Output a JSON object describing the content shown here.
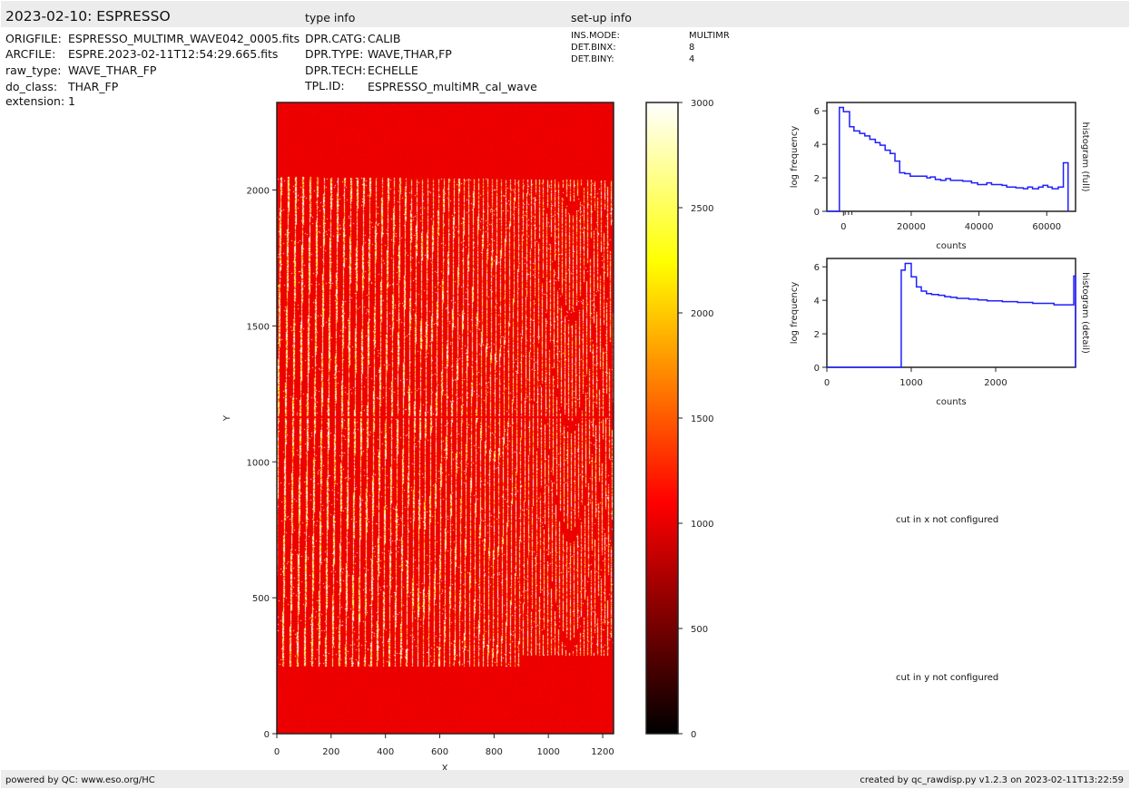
{
  "header": {
    "title": "2023-02-10: ESPRESSO",
    "type_info": "type info",
    "setup_info": "set-up info"
  },
  "file_info": [
    {
      "key": "ORIGFILE:",
      "value": "ESPRESSO_MULTIMR_WAVE042_0005.fits"
    },
    {
      "key": "ARCFILE:",
      "value": "ESPRE.2023-02-11T12:54:29.665.fits"
    },
    {
      "key": "raw_type:",
      "value": "WAVE_THAR_FP"
    },
    {
      "key": "do_class:",
      "value": "THAR_FP"
    },
    {
      "key": "extension:",
      "value": "1"
    }
  ],
  "type_info": [
    {
      "key": "DPR.CATG:",
      "value": "CALIB"
    },
    {
      "key": "DPR.TYPE:",
      "value": "WAVE,THAR,FP"
    },
    {
      "key": "DPR.TECH:",
      "value": "ECHELLE"
    },
    {
      "key": "TPL.ID:",
      "value": "ESPRESSO_multiMR_cal_wave"
    }
  ],
  "setup_info": [
    {
      "key": "INS.MODE:",
      "value": "MULTIMR"
    },
    {
      "key": "DET.BINX:",
      "value": "8"
    },
    {
      "key": "DET.BINY:",
      "value": "4"
    }
  ],
  "chart_data": [
    {
      "type": "heatmap",
      "xlabel": "X",
      "ylabel": "Y",
      "xlim": [
        0,
        1240
      ],
      "ylim": [
        0,
        2322
      ],
      "xticks": [
        "0",
        "200",
        "400",
        "600",
        "800",
        "1000",
        "1200"
      ],
      "yticks": [
        "0",
        "500",
        "1000",
        "1500",
        "2000"
      ],
      "colormap": "hot",
      "colorbar": {
        "range": [
          0,
          3000
        ],
        "ticks": [
          "0",
          "500",
          "1000",
          "1500",
          "2000",
          "2500",
          "3000"
        ]
      }
    },
    {
      "type": "line",
      "title": "histogram (detail)",
      "xlabel": "counts",
      "ylabel": "log frequency",
      "xlim": [
        0,
        2946
      ],
      "ylim": [
        0,
        6.5
      ],
      "xticks": [
        "0",
        "1000",
        "2000"
      ],
      "yticks": [
        "0",
        "2",
        "4",
        "6"
      ],
      "color": "#1f1fff",
      "bin_edges": [
        0,
        881,
        928,
        1000,
        1061,
        1119,
        1180,
        1241,
        1324,
        1396,
        1468,
        1540,
        1683,
        1791,
        1899,
        2079,
        2259,
        2439,
        2691,
        2925,
        2946
      ],
      "values": [
        0,
        5.8,
        6.2,
        5.4,
        4.8,
        4.55,
        4.4,
        4.35,
        4.3,
        4.22,
        4.18,
        4.12,
        4.07,
        4.02,
        3.97,
        3.92,
        3.87,
        3.82,
        3.73,
        5.45
      ]
    },
    {
      "type": "line",
      "title": "histogram (full)",
      "xlabel": "counts",
      "ylabel": "log frequency",
      "xlim": [
        -4900,
        68500
      ],
      "ylim": [
        0,
        6.5
      ],
      "xticks": [
        "0",
        "20000",
        "40000",
        "60000"
      ],
      "yticks": [
        "0",
        "2",
        "4",
        "6"
      ],
      "color": "#1f1fff",
      "bin_edges": [
        -1200,
        0,
        1800,
        3100,
        4800,
        6300,
        7800,
        9400,
        10800,
        12300,
        13800,
        15200,
        16600,
        18100,
        19700,
        24600,
        25700,
        27100,
        28700,
        30200,
        31600,
        35200,
        37800,
        39600,
        42300,
        43700,
        46800,
        48200,
        50900,
        53100,
        54400,
        55800,
        57600,
        58900,
        60300,
        61600,
        63400,
        64900,
        66300
      ],
      "values": [
        6.2,
        5.95,
        5.05,
        4.8,
        4.65,
        4.5,
        4.3,
        4.1,
        3.95,
        3.65,
        3.45,
        3.0,
        2.3,
        2.25,
        2.1,
        2.0,
        2.05,
        1.9,
        1.85,
        1.95,
        1.85,
        1.8,
        1.7,
        1.6,
        1.7,
        1.6,
        1.55,
        1.45,
        1.4,
        1.35,
        1.45,
        1.35,
        1.45,
        1.55,
        1.45,
        1.35,
        1.45,
        2.9
      ]
    }
  ],
  "cuts": {
    "x": "cut in x not configured",
    "y": "cut in y not configured"
  },
  "footer": {
    "left": "powered by QC: www.eso.org/HC",
    "right": "created by qc_rawdisp.py v1.2.3 on 2023-02-11T13:22:59"
  }
}
